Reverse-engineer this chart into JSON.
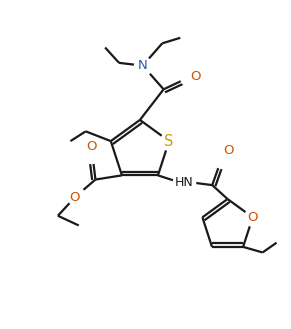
{
  "background_color": "#ffffff",
  "line_color": "#1a1a1a",
  "atom_colors": {
    "S": "#c8a000",
    "O": "#cc5500",
    "N": "#3355aa",
    "C": "#1a1a1a"
  },
  "line_width": 1.6,
  "font_size": 9.5,
  "figsize": [
    2.91,
    3.29
  ],
  "dpi": 100
}
